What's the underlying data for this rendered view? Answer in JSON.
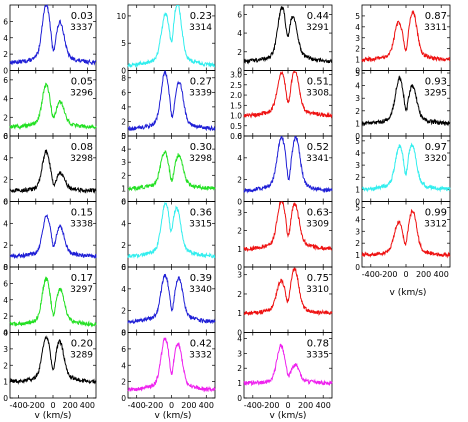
{
  "figure": {
    "xlabel": "v (km/s)"
  },
  "chart_data": {
    "type": "line",
    "xlim": [
      -500,
      500
    ],
    "x_tick_labels": [
      "-400",
      "-200",
      "0",
      "200",
      "400"
    ],
    "column_x_ticks": [
      [
        "-400",
        "-200",
        "0",
        "200",
        "400"
      ],
      [
        "-400",
        "-200",
        "0",
        "200",
        "400"
      ],
      [
        "-400",
        "-200",
        "0",
        "200",
        "400"
      ],
      [
        "-400",
        "-200",
        "0",
        "200",
        "400"
      ]
    ],
    "colors": {
      "blue": "#1f1fd6",
      "green": "#22e022",
      "black": "#000000",
      "cyan": "#33eeee",
      "red": "#ee1111",
      "magenta": "#ee22ee"
    },
    "panels": [
      {
        "phase": "0.03",
        "id": "3337",
        "color": "#1f1fd6",
        "ylim": [
          0,
          8
        ],
        "yticks": [
          "0",
          "2",
          "4",
          "6"
        ],
        "shape": [
          1.0,
          7.2,
          5.0,
          -80,
          85
        ]
      },
      {
        "phase": "0.05",
        "id": "3296",
        "color": "#22e022",
        "ylim": [
          0,
          7
        ],
        "yticks": [
          "0",
          "2",
          "4",
          "6"
        ],
        "shape": [
          1.0,
          5.0,
          3.2,
          -80,
          85
        ]
      },
      {
        "phase": "0.08",
        "id": "3298",
        "color": "#000000",
        "ylim": [
          0,
          6
        ],
        "yticks": [
          "0",
          "2",
          "4",
          "6"
        ],
        "shape": [
          1.0,
          4.3,
          2.3,
          -80,
          90
        ]
      },
      {
        "phase": "0.15",
        "id": "3338",
        "color": "#1f1fd6",
        "ylim": [
          0,
          6
        ],
        "yticks": [
          "0",
          "2",
          "4",
          "6"
        ],
        "shape": [
          1.0,
          4.2,
          3.2,
          -75,
          85
        ]
      },
      {
        "phase": "0.17",
        "id": "3297",
        "color": "#22e022",
        "ylim": [
          0,
          8
        ],
        "yticks": [
          "0",
          "2",
          "4",
          "6",
          "8"
        ],
        "shape": [
          1.0,
          5.8,
          4.5,
          -80,
          85
        ]
      },
      {
        "phase": "0.20",
        "id": "3289",
        "color": "#000000",
        "ylim": [
          0,
          4
        ],
        "yticks": [
          "0",
          "1",
          "2",
          "3",
          "4"
        ],
        "shape": [
          1.0,
          3.3,
          3.0,
          -80,
          80
        ]
      },
      {
        "phase": "0.23",
        "id": "3314",
        "color": "#33eeee",
        "ylim": [
          0,
          12
        ],
        "yticks": [
          "0",
          "5",
          "10"
        ],
        "shape": [
          1.0,
          8.5,
          10.5,
          -70,
          70
        ]
      },
      {
        "phase": "0.27",
        "id": "3339",
        "color": "#1f1fd6",
        "ylim": [
          0,
          9
        ],
        "yticks": [
          "0",
          "2",
          "4",
          "6",
          "8"
        ],
        "shape": [
          1.0,
          7.5,
          6.2,
          -75,
          90
        ]
      },
      {
        "phase": "0.30",
        "id": "3298",
        "color": "#22e022",
        "ylim": [
          0,
          5
        ],
        "yticks": [
          "0",
          "1",
          "2",
          "3",
          "4",
          "5"
        ],
        "shape": [
          1.0,
          3.3,
          3.1,
          -80,
          85
        ]
      },
      {
        "phase": "0.36",
        "id": "3315",
        "color": "#33eeee",
        "ylim": [
          0,
          6
        ],
        "yticks": [
          "0",
          "2",
          "4",
          "6"
        ],
        "shape": [
          1.0,
          5.0,
          4.5,
          -70,
          60
        ]
      },
      {
        "phase": "0.39",
        "id": "3340",
        "color": "#1f1fd6",
        "ylim": [
          0,
          6
        ],
        "yticks": [
          "0",
          "2",
          "4",
          "6"
        ],
        "shape": [
          1.0,
          4.5,
          4.3,
          -75,
          85
        ]
      },
      {
        "phase": "0.42",
        "id": "3332",
        "color": "#ee22ee",
        "ylim": [
          0,
          8
        ],
        "yticks": [
          "0",
          "2",
          "4",
          "6",
          "8"
        ],
        "shape": [
          1.0,
          6.2,
          5.6,
          -75,
          75
        ]
      },
      {
        "phase": "0.44",
        "id": "3291",
        "color": "#000000",
        "ylim": [
          0,
          7
        ],
        "yticks": [
          "0",
          "2",
          "4",
          "6"
        ],
        "shape": [
          1.0,
          5.8,
          4.8,
          -70,
          60
        ]
      },
      {
        "phase": "0.51",
        "id": "3308",
        "color": "#ee1111",
        "ylim": [
          0,
          3.2
        ],
        "yticks": [
          "0.0",
          "0.5",
          "1.0",
          "1.5",
          "2.0",
          "2.5",
          "3.0"
        ],
        "shape": [
          1.0,
          2.7,
          2.8,
          -75,
          80
        ]
      },
      {
        "phase": "0.52",
        "id": "3341",
        "color": "#1f1fd6",
        "ylim": [
          0,
          6
        ],
        "yticks": [
          "0",
          "2",
          "4",
          "6"
        ],
        "shape": [
          1.0,
          5.0,
          5.0,
          -75,
          90
        ]
      },
      {
        "phase": "0.63",
        "id": "3309",
        "color": "#ee1111",
        "ylim": [
          0,
          3.6
        ],
        "yticks": [
          "0",
          "1",
          "2",
          "3"
        ],
        "shape": [
          1.0,
          3.2,
          3.0,
          -75,
          80
        ]
      },
      {
        "phase": "0.75",
        "id": "3310",
        "color": "#ee1111",
        "ylim": [
          0,
          3.4
        ],
        "yticks": [
          "0",
          "1",
          "2",
          "3"
        ],
        "shape": [
          1.0,
          2.4,
          3.0,
          -80,
          75
        ]
      },
      {
        "phase": "0.78",
        "id": "3335",
        "color": "#ee22ee",
        "ylim": [
          0,
          4.4
        ],
        "yticks": [
          "0",
          "1",
          "2",
          "3",
          "4"
        ],
        "shape": [
          1.0,
          3.3,
          2.0,
          -80,
          85
        ]
      },
      {
        "phase": "0.87",
        "id": "3311",
        "color": "#ee1111",
        "ylim": [
          0,
          6
        ],
        "yticks": [
          "0",
          "1",
          "2",
          "3",
          "4",
          "5"
        ],
        "shape": [
          1.0,
          3.8,
          4.7,
          -85,
          80
        ]
      },
      {
        "phase": "0.93",
        "id": "3295",
        "color": "#000000",
        "ylim": [
          0,
          5.2
        ],
        "yticks": [
          "0",
          "1",
          "2",
          "3",
          "4",
          "5"
        ],
        "shape": [
          1.0,
          4.0,
          3.4,
          -75,
          75
        ]
      },
      {
        "phase": "0.97",
        "id": "3320",
        "color": "#33eeee",
        "ylim": [
          0,
          5.4
        ],
        "yticks": [
          "0",
          "1",
          "2",
          "3",
          "4",
          "5"
        ],
        "shape": [
          1.0,
          3.9,
          4.0,
          -75,
          70
        ]
      },
      {
        "phase": "0.99",
        "id": "3312",
        "color": "#ee1111",
        "ylim": [
          0,
          5.5
        ],
        "yticks": [
          "0",
          "1",
          "2",
          "3",
          "4",
          "5"
        ],
        "shape": [
          1.0,
          3.3,
          4.2,
          -85,
          75
        ]
      }
    ]
  }
}
